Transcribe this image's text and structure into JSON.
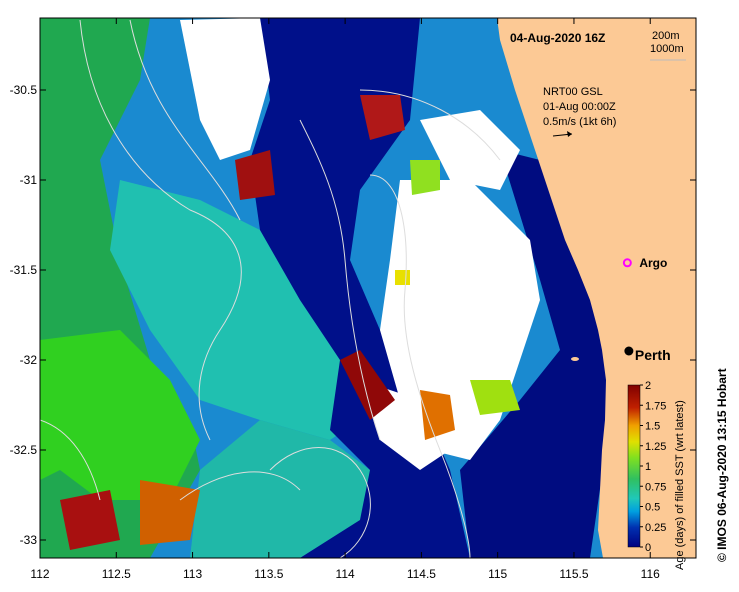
{
  "map": {
    "timestamp": "04-Aug-2020 16Z",
    "depth_contours": [
      "200m",
      "1000m"
    ],
    "current_product": "NRT00 GSL",
    "current_date": "01-Aug 00:00Z",
    "current_scale": "0.5m/s (1kt 6h)",
    "colors": {
      "land": "#fcc995",
      "missing": "#ffffff",
      "contour": "#dddddd"
    }
  },
  "axes": {
    "x_ticks": [
      "112",
      "112.5",
      "113",
      "113.5",
      "114",
      "114.5",
      "115",
      "115.5",
      "116"
    ],
    "y_ticks": [
      "-30.5",
      "-31",
      "-31.5",
      "-32",
      "-32.5",
      "-33"
    ],
    "xlim": [
      112,
      116.3
    ],
    "ylim": [
      -33.1,
      -30.1
    ]
  },
  "markers": [
    {
      "label": "Argo",
      "lon": 115.85,
      "lat": -31.46,
      "color": "#ff00ff"
    },
    {
      "label": "Perth",
      "lon": 115.86,
      "lat": -31.95,
      "color": "#000000"
    }
  ],
  "colorbar": {
    "title": "Age (days) of filled SST (wrt latest)",
    "ticks": [
      "0",
      "0.25",
      "0.5",
      "0.75",
      "1",
      "1.25",
      "1.5",
      "1.75",
      "2"
    ],
    "range": [
      0,
      2
    ],
    "colors": [
      "#000080",
      "#0040c0",
      "#00a0e0",
      "#20c8b8",
      "#30c060",
      "#80e020",
      "#e0e000",
      "#e08000",
      "#c02000",
      "#800000"
    ]
  },
  "credit": "IMOS 06-Aug-2020 13:15 Hobart"
}
